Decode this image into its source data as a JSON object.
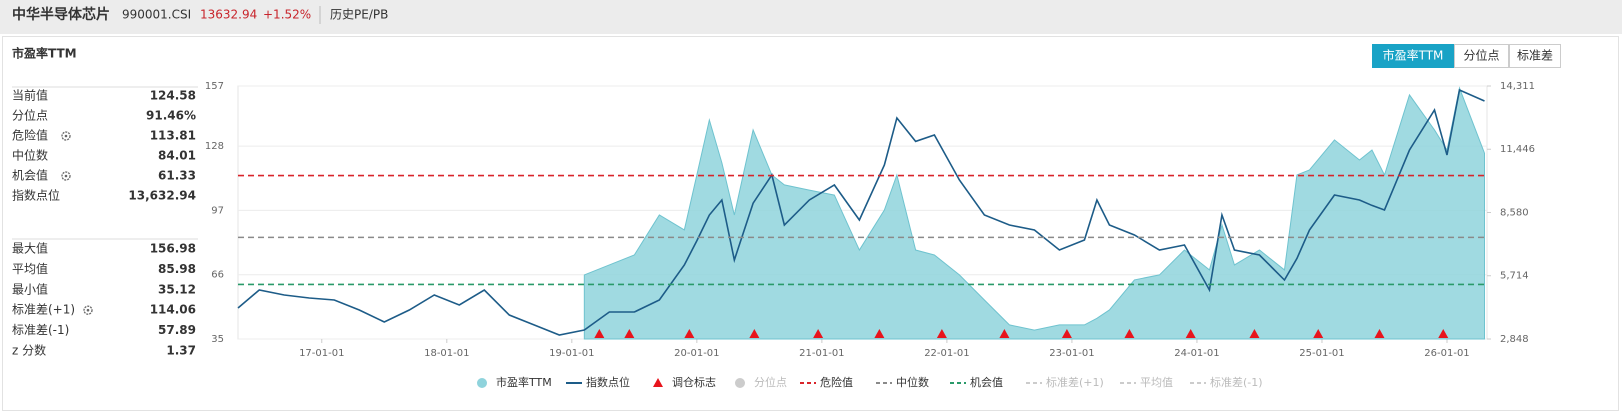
{
  "header": {
    "title": "中华半导体芯片",
    "code": "990001.CSI",
    "price": "13632.94",
    "change": "+1.52%",
    "link": "历史PE/PB"
  },
  "panel_title": "市盈率TTM",
  "tabs": [
    "市盈率TTM",
    "分位点",
    "标准差"
  ],
  "stats": [
    [
      "当前值",
      "124.58"
    ],
    [
      "分位点",
      "91.46%"
    ],
    [
      "危险值",
      "113.81"
    ],
    [
      "中位数",
      "84.01"
    ],
    [
      "机会值",
      "61.33"
    ],
    [
      "指数点位",
      "13,632.94"
    ]
  ],
  "stats2": [
    [
      "最大值",
      "156.98"
    ],
    [
      "平均值",
      "85.98"
    ],
    [
      "最小值",
      "35.12"
    ],
    [
      "标准差(+1)",
      "114.06"
    ],
    [
      "标准差(-1)",
      "57.89"
    ],
    [
      "z 分数",
      "1.37"
    ]
  ],
  "chart_data": {
    "type": "area-line",
    "x": [
      16.33,
      16.5,
      16.7,
      16.9,
      17.1,
      17.3,
      17.5,
      17.7,
      17.9,
      18.1,
      18.3,
      18.5,
      18.7,
      18.9,
      19.1,
      19.3,
      19.5,
      19.7,
      19.9,
      20.0,
      20.1,
      20.2,
      20.3,
      20.45,
      20.6,
      20.7,
      20.9,
      21.1,
      21.3,
      21.5,
      21.6,
      21.75,
      21.9,
      22.1,
      22.3,
      22.5,
      22.7,
      22.9,
      23.1,
      23.2,
      23.3,
      23.5,
      23.7,
      23.9,
      24.1,
      24.2,
      24.3,
      24.5,
      24.7,
      24.8,
      24.9,
      25.1,
      25.3,
      25.4,
      25.5,
      25.7,
      25.9,
      26.0,
      26.1,
      26.3
    ],
    "series": [
      {
        "name": "市盈率TTM",
        "color": "#8fd3dc",
        "values": [
          null,
          null,
          null,
          null,
          null,
          null,
          null,
          null,
          null,
          null,
          null,
          null,
          null,
          null,
          65.9,
          70.7,
          75.5,
          94.8,
          87.6,
          114.1,
          140.6,
          120,
          94.8,
          135.8,
          114.1,
          109.3,
          106.8,
          104.4,
          77.9,
          97.2,
          114.1,
          77.9,
          75.5,
          65.9,
          53.8,
          41.8,
          39.3,
          41.8,
          41.8,
          45,
          49,
          63.5,
          65.9,
          77.9,
          68.3,
          90,
          70.7,
          77.9,
          68.3,
          114.1,
          116.5,
          131,
          121.3,
          126.1,
          114.1,
          152.7,
          135.8,
          126.1,
          156,
          124.58
        ]
      },
      {
        "name": "指数点位",
        "color": "#1d5c88",
        "axis": "y2",
        "values": [
          4253,
          5068,
          4842,
          4706,
          4615,
          4162,
          3618,
          4162,
          4842,
          4389,
          5068,
          3935,
          3482,
          3029,
          3256,
          4071,
          4071,
          4615,
          6201,
          7300,
          8466,
          9146,
          6427,
          9000,
          10279,
          8013,
          9146,
          9826,
          8240,
          10732,
          12862,
          11800,
          12091,
          10052,
          8466,
          8013,
          7787,
          6880,
          7334,
          9146,
          8013,
          7560,
          6880,
          7107,
          5068,
          8466,
          6880,
          6653,
          5521,
          6500,
          7787,
          9372,
          9146,
          8900,
          8693,
          11411,
          13224,
          11184,
          14130,
          13632.94
        ]
      }
    ],
    "markers": {
      "name": "调仓标志",
      "color": "#e8141c",
      "x": [
        19.22,
        19.46,
        19.94,
        20.46,
        20.97,
        21.46,
        21.96,
        22.46,
        22.96,
        23.46,
        23.95,
        24.46,
        24.97,
        25.46,
        25.97
      ]
    },
    "reference_lines": [
      {
        "name": "危险值",
        "value": 113.81,
        "color": "#d9252b"
      },
      {
        "name": "中位数",
        "value": 84.01,
        "color": "#8a8a8a"
      },
      {
        "name": "机会值",
        "value": 61.33,
        "color": "#2a9a6a"
      }
    ],
    "disabled_legend": [
      "分位点",
      "标准差(+1)",
      "平均值",
      "标准差(-1)"
    ],
    "xlim": [
      16.33,
      26.32
    ],
    "xticks": [
      {
        "value": 17,
        "label": "17-01-01"
      },
      {
        "value": 18,
        "label": "18-01-01"
      },
      {
        "value": 19,
        "label": "19-01-01"
      },
      {
        "value": 20,
        "label": "20-01-01"
      },
      {
        "value": 21,
        "label": "21-01-01"
      },
      {
        "value": 22,
        "label": "22-01-01"
      },
      {
        "value": 23,
        "label": "23-01-01"
      },
      {
        "value": 24,
        "label": "24-01-01"
      },
      {
        "value": 25,
        "label": "25-01-01"
      },
      {
        "value": 26,
        "label": "26-01-01"
      }
    ],
    "ylim": [
      35,
      157
    ],
    "yticks": [
      35,
      66,
      97,
      128,
      157
    ],
    "y2lim": [
      2848,
      14311
    ],
    "y2ticks": [
      {
        "value": 2848,
        "label": "2,848"
      },
      {
        "value": 5714,
        "label": "5,714"
      },
      {
        "value": 8580,
        "label": "8,580"
      },
      {
        "value": 11446,
        "label": "11,446"
      },
      {
        "value": 14311,
        "label": "14,311"
      }
    ],
    "grid": true
  }
}
